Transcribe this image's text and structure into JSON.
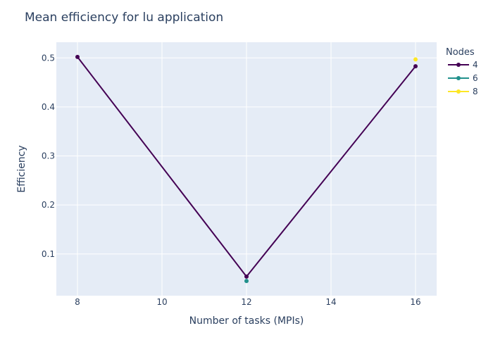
{
  "chart_data": {
    "type": "line",
    "title": "Mean efficiency for lu application",
    "xlabel": "Number of tasks (MPIs)",
    "ylabel": "Efficiency",
    "x_ticks": [
      8,
      10,
      12,
      14,
      16
    ],
    "y_ticks": [
      0.1,
      0.2,
      0.3,
      0.4,
      0.5
    ],
    "x_tick_labels": [
      "8",
      "10",
      "12",
      "14",
      "16"
    ],
    "y_tick_labels": [
      "0.1",
      "0.2",
      "0.3",
      "0.4",
      "0.5"
    ],
    "xlim": [
      7.5,
      16.5
    ],
    "ylim": [
      0.015,
      0.532
    ],
    "grid": true,
    "legend_title": "Nodes",
    "legend_position": "top-right",
    "series": [
      {
        "name": "4",
        "color": "#440154",
        "x": [
          8,
          12,
          16
        ],
        "y": [
          0.502,
          0.054,
          0.483
        ]
      },
      {
        "name": "6",
        "color": "#21918c",
        "x": [
          12
        ],
        "y": [
          0.045
        ]
      },
      {
        "name": "8",
        "color": "#fde725",
        "x": [
          16
        ],
        "y": [
          0.497
        ]
      }
    ],
    "plot_background": "#e5ecf6"
  }
}
